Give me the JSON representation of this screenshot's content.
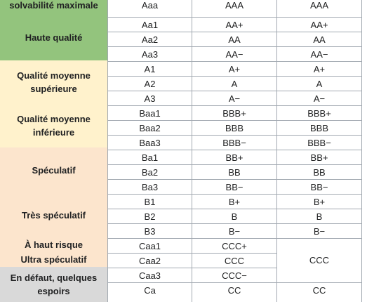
{
  "colors": {
    "green": "#93c47d",
    "yellow": "#fff2cc",
    "peach": "#fce5cd",
    "gray": "#d9d9d9"
  },
  "categories": [
    {
      "label": "solvabilité maximale",
      "color": "green"
    },
    {
      "label": "Haute qualité",
      "color": "green"
    },
    {
      "label": "Qualité moyenne supérieure",
      "color": "yellow"
    },
    {
      "label": "Qualité moyenne inférieure",
      "color": "yellow"
    },
    {
      "label": "Spéculatif",
      "color": "peach"
    },
    {
      "label": "Très spéculatif",
      "color": "peach"
    },
    {
      "label": "À haut risque",
      "color": "peach"
    },
    {
      "label": "Ultra spéculatif",
      "color": "peach"
    },
    {
      "label": "En défaut, quelques espoirs",
      "color": "gray"
    }
  ],
  "rows": [
    [
      "Aaa",
      "AAA",
      "AAA"
    ],
    [
      "Aa1",
      "AA+",
      "AA+"
    ],
    [
      "Aa2",
      "AA",
      "AA"
    ],
    [
      "Aa3",
      "AA−",
      "AA−"
    ],
    [
      "A1",
      "A+",
      "A+"
    ],
    [
      "A2",
      "A",
      "A"
    ],
    [
      "A3",
      "A−",
      "A−"
    ],
    [
      "Baa1",
      "BBB+",
      "BBB+"
    ],
    [
      "Baa2",
      "BBB",
      "BBB"
    ],
    [
      "Baa3",
      "BBB−",
      "BBB−"
    ],
    [
      "Ba1",
      "BB+",
      "BB+"
    ],
    [
      "Ba2",
      "BB",
      "BB"
    ],
    [
      "Ba3",
      "BB−",
      "BB−"
    ],
    [
      "B1",
      "B+",
      "B+"
    ],
    [
      "B2",
      "B",
      "B"
    ],
    [
      "B3",
      "B−",
      "B−"
    ],
    [
      "Caa1",
      "CCC+",
      ""
    ],
    [
      "Caa2",
      "CCC",
      "CCC"
    ],
    [
      "Caa3",
      "CCC−",
      ""
    ],
    [
      "Ca",
      "CC",
      "CC"
    ]
  ]
}
